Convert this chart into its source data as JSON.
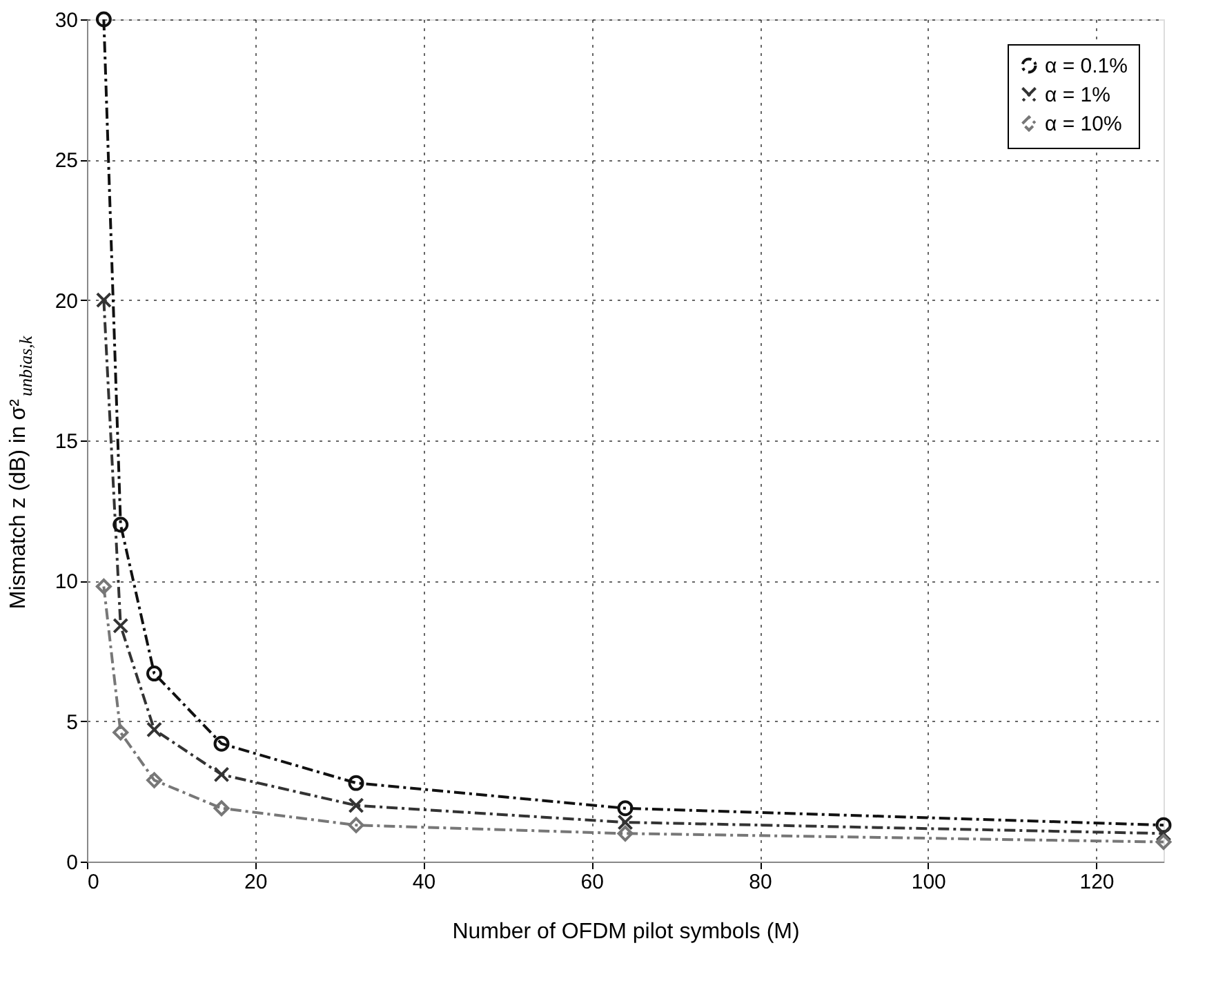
{
  "chart_data": {
    "type": "line",
    "xlabel": "Number of OFDM pilot symbols (M)",
    "ylabel": "Mismatch z (dB) in σ²$_{unbias,k}$",
    "x": [
      2,
      4,
      8,
      16,
      32,
      64,
      128
    ],
    "series": [
      {
        "name": "α = 0.1%",
        "color": "#111111",
        "marker": "circle",
        "values": [
          30,
          12,
          6.7,
          4.2,
          2.8,
          1.9,
          1.3
        ]
      },
      {
        "name": "α = 1%",
        "color": "#333333",
        "marker": "cross",
        "values": [
          20,
          8.4,
          4.7,
          3.1,
          2.0,
          1.4,
          1.0
        ]
      },
      {
        "name": "α = 10%",
        "color": "#777777",
        "marker": "diamond",
        "values": [
          9.8,
          4.6,
          2.9,
          1.9,
          1.3,
          1.0,
          0.7
        ]
      }
    ],
    "xlim": [
      0,
      128
    ],
    "xticks": [
      0,
      20,
      40,
      60,
      80,
      100,
      120
    ],
    "ylim": [
      0,
      30
    ],
    "yticks": [
      0,
      5,
      10,
      15,
      20,
      25,
      30
    ],
    "grid": true,
    "legend": "top right",
    "line_style": "dashed"
  }
}
